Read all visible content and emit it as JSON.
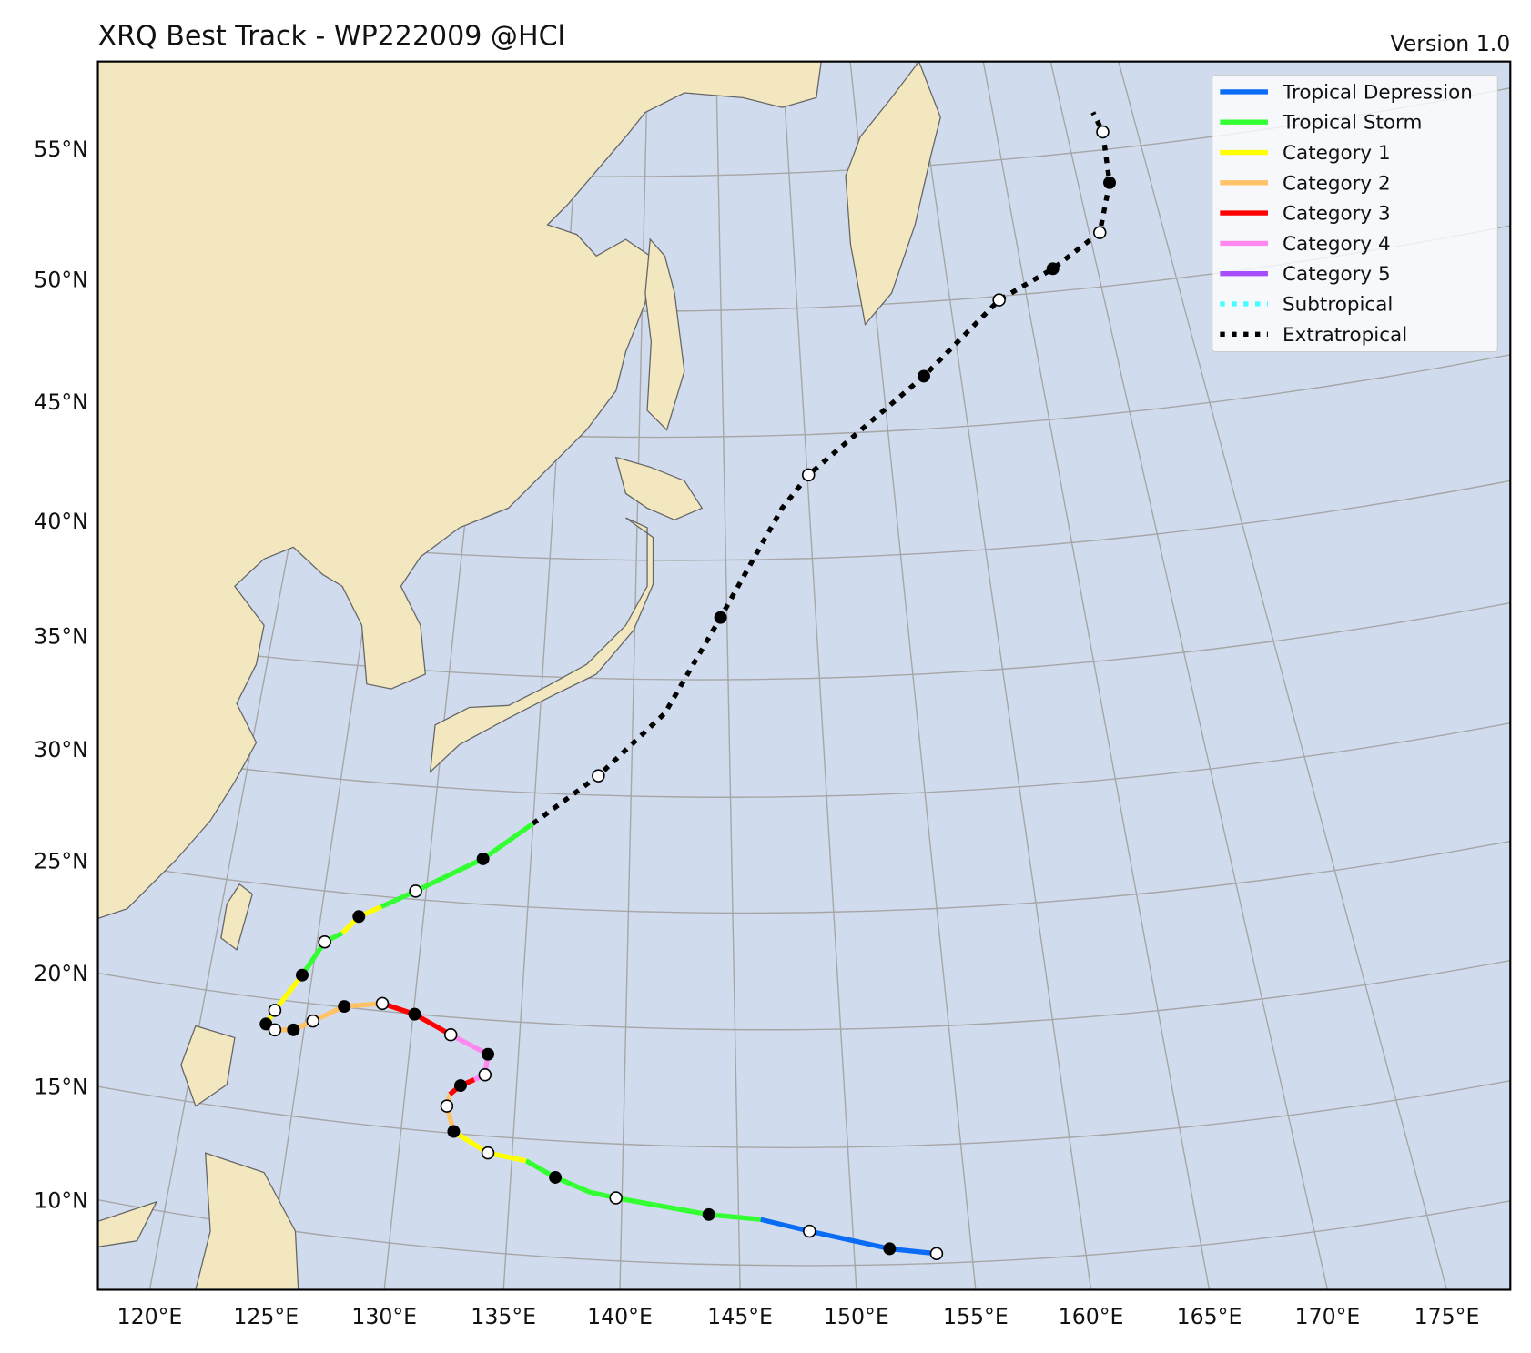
{
  "title": "XRQ Best Track - WP222009  @HCl",
  "version": "Version 1.0",
  "legend": [
    {
      "label": "Tropical Depression",
      "color": "#0a6cf5",
      "style": "solid"
    },
    {
      "label": "Tropical Storm",
      "color": "#33ff33",
      "style": "solid"
    },
    {
      "label": "Category 1",
      "color": "#ffff00",
      "style": "solid"
    },
    {
      "label": "Category 2",
      "color": "#ffc266",
      "style": "solid"
    },
    {
      "label": "Category 3",
      "color": "#ff0000",
      "style": "solid"
    },
    {
      "label": "Category 4",
      "color": "#ff88ee",
      "style": "solid"
    },
    {
      "label": "Category 5",
      "color": "#a64dff",
      "style": "solid"
    },
    {
      "label": "Subtropical",
      "color": "#44ffff",
      "style": "dotted"
    },
    {
      "label": "Extratropical",
      "color": "#000000",
      "style": "dotted"
    }
  ],
  "lat_labels": [
    "55°N",
    "50°N",
    "45°N",
    "40°N",
    "35°N",
    "30°N",
    "25°N",
    "20°N",
    "15°N",
    "10°N"
  ],
  "lon_labels": [
    "120°E",
    "125°E",
    "130°E",
    "135°E",
    "140°E",
    "145°E",
    "150°E",
    "155°E",
    "160°E",
    "165°E",
    "170°E",
    "175°E"
  ]
}
